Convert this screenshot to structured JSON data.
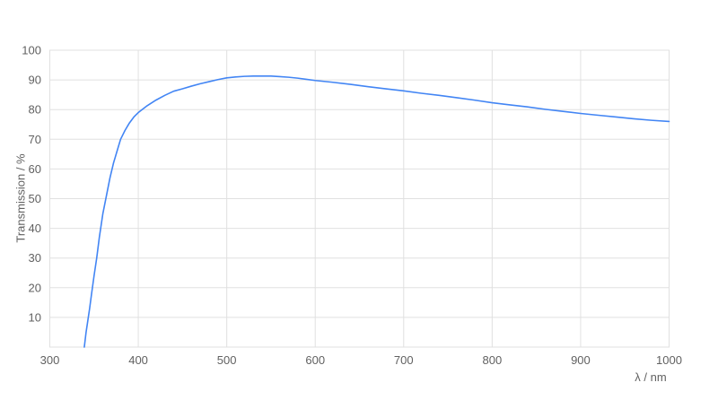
{
  "chart_data": {
    "type": "line",
    "title": "",
    "xlabel": "λ / nm",
    "ylabel": "Transmission / %",
    "xlim": [
      300,
      1000
    ],
    "ylim": [
      0,
      100
    ],
    "x_ticks": [
      300,
      400,
      500,
      600,
      700,
      800,
      900,
      1000
    ],
    "y_ticks": [
      10,
      20,
      30,
      40,
      50,
      60,
      70,
      80,
      90,
      100
    ],
    "grid": true,
    "legend_position": "none",
    "series": [
      {
        "name": "Transmission",
        "color": "#4285f4",
        "x": [
          339,
          341,
          343,
          345,
          347,
          350,
          353,
          356,
          360,
          364,
          368,
          372,
          376,
          380,
          385,
          390,
          395,
          400,
          410,
          420,
          430,
          440,
          450,
          460,
          470,
          480,
          490,
          500,
          510,
          520,
          530,
          540,
          550,
          560,
          570,
          580,
          590,
          600,
          620,
          640,
          660,
          680,
          700,
          720,
          740,
          760,
          780,
          800,
          820,
          840,
          860,
          880,
          900,
          920,
          940,
          960,
          980,
          1000
        ],
        "y": [
          0,
          5,
          9,
          13,
          17.5,
          24,
          30,
          37,
          45,
          51,
          57,
          62,
          66,
          70,
          73,
          75.5,
          77.5,
          79,
          81.3,
          83.2,
          84.8,
          86.2,
          87.0,
          87.9,
          88.7,
          89.4,
          90.1,
          90.7,
          91.0,
          91.2,
          91.3,
          91.3,
          91.3,
          91.1,
          90.9,
          90.6,
          90.2,
          89.8,
          89.2,
          88.5,
          87.7,
          87.0,
          86.3,
          85.5,
          84.8,
          84.0,
          83.2,
          82.3,
          81.6,
          80.9,
          80.1,
          79.4,
          78.7,
          78.1,
          77.5,
          76.9,
          76.4,
          76.0
        ]
      }
    ]
  },
  "colors": {
    "line": "#4285f4",
    "grid": "#e0e0e0",
    "tick_text": "#616161",
    "background": "#ffffff"
  }
}
